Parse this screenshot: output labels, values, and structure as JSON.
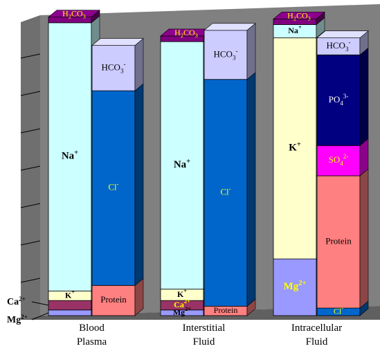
{
  "chart_data": {
    "type": "bar",
    "stacked": true,
    "three_d": true,
    "grid": true,
    "categories": [
      {
        "label_lines": [
          "Blood",
          "Plasma"
        ]
      },
      {
        "label_lines": [
          "Interstitial",
          "Fluid"
        ]
      },
      {
        "label_lines": [
          "Intracellular",
          "Fluid"
        ]
      }
    ],
    "columns": [
      {
        "category": 0,
        "side": "cations",
        "segments": [
          {
            "name": "Mg",
            "sup": "2+",
            "value": 3,
            "color": "#9999ff",
            "label_color": null
          },
          {
            "name": "Ca",
            "sup": "2+",
            "value": 5,
            "color": "#993366",
            "label_color": null
          },
          {
            "name": "K",
            "sup": "+",
            "value": 5,
            "color": "#ffffcc",
            "label_color": "#000000"
          },
          {
            "name": "Na",
            "sup": "+",
            "value": 142,
            "color": "#ccffff",
            "label_color": "#000000"
          },
          {
            "name": "H2CO3",
            "value": 3,
            "color": "#800080",
            "label_color": "#ffff00"
          }
        ]
      },
      {
        "category": 0,
        "side": "anions",
        "segments": [
          {
            "name": "Protein",
            "value": 16,
            "color": "#ff8080",
            "label_color": "#000000"
          },
          {
            "name": "Cl",
            "sup": "-",
            "value": 103,
            "color": "#0066cc",
            "label_color": "#ffff00"
          },
          {
            "name": "HCO3",
            "sub": "3",
            "sup": "-",
            "value": 24,
            "color": "#ccccff",
            "label_color": "#000000"
          }
        ]
      },
      {
        "category": 1,
        "side": "cations",
        "segments": [
          {
            "name": "Mg",
            "sup": "2+",
            "value": 3,
            "color": "#9999ff",
            "label_color": "#000000"
          },
          {
            "name": "Ca",
            "sup": "2+",
            "value": 5,
            "color": "#993366",
            "label_color": "#ffff00"
          },
          {
            "name": "K",
            "sup": "+",
            "value": 6,
            "color": "#ffffcc",
            "label_color": "#000000"
          },
          {
            "name": "Na",
            "sup": "+",
            "value": 131,
            "color": "#ccffff",
            "label_color": "#000000"
          },
          {
            "name": "H2CO3",
            "value": 3,
            "color": "#800080",
            "label_color": "#ffff00"
          }
        ]
      },
      {
        "category": 1,
        "side": "anions",
        "segments": [
          {
            "name": "Protein",
            "value": 5,
            "color": "#ff8080",
            "label_color": "#000000"
          },
          {
            "name": "Cl",
            "sup": "-",
            "value": 120,
            "color": "#0066cc",
            "label_color": "#ffff00"
          },
          {
            "name": "HCO3",
            "sub": "3",
            "sup": "-",
            "value": 26,
            "color": "#ccccff",
            "label_color": "#000000"
          }
        ]
      },
      {
        "category": 2,
        "side": "cations",
        "segments": [
          {
            "name": "Mg",
            "sup": "2+",
            "value": 30,
            "color": "#9999ff",
            "label_color": "#ffff00"
          },
          {
            "name": "K",
            "sup": "+",
            "value": 117,
            "color": "#ffffcc",
            "label_color": "#000000"
          },
          {
            "name": "Na",
            "sup": "+",
            "value": 7,
            "color": "#ccffff",
            "label_color": "#000000"
          },
          {
            "name": "H2CO3",
            "value": 3,
            "color": "#800080",
            "label_color": "#ffff00"
          }
        ]
      },
      {
        "category": 2,
        "side": "anions",
        "segments": [
          {
            "name": "Cl",
            "sup": "-",
            "value": 4,
            "color": "#0066cc",
            "label_color": "#ffff00"
          },
          {
            "name": "Protein",
            "value": 70,
            "color": "#ff8080",
            "label_color": "#000000"
          },
          {
            "name": "SO4",
            "sub": "4",
            "sup": "2-",
            "value": 16,
            "color": "#ff00ff",
            "label_color": "#ffff00"
          },
          {
            "name": "PO4",
            "sub": "4",
            "sup": "3-",
            "value": 48,
            "color": "#000080",
            "label_color": "#ffffff"
          },
          {
            "name": "HCO3",
            "sub": "3",
            "sup": "-",
            "value": 9,
            "color": "#ccccff",
            "label_color": "#000000"
          }
        ]
      }
    ],
    "side_labels": [
      {
        "name": "Ca",
        "sup": "2+",
        "target": "Ca"
      },
      {
        "name": "Mg",
        "sup": "2+",
        "target": "Mg"
      }
    ],
    "colors": {
      "wall": "#808080",
      "floor": "#606060",
      "gridline": "#000000"
    }
  }
}
